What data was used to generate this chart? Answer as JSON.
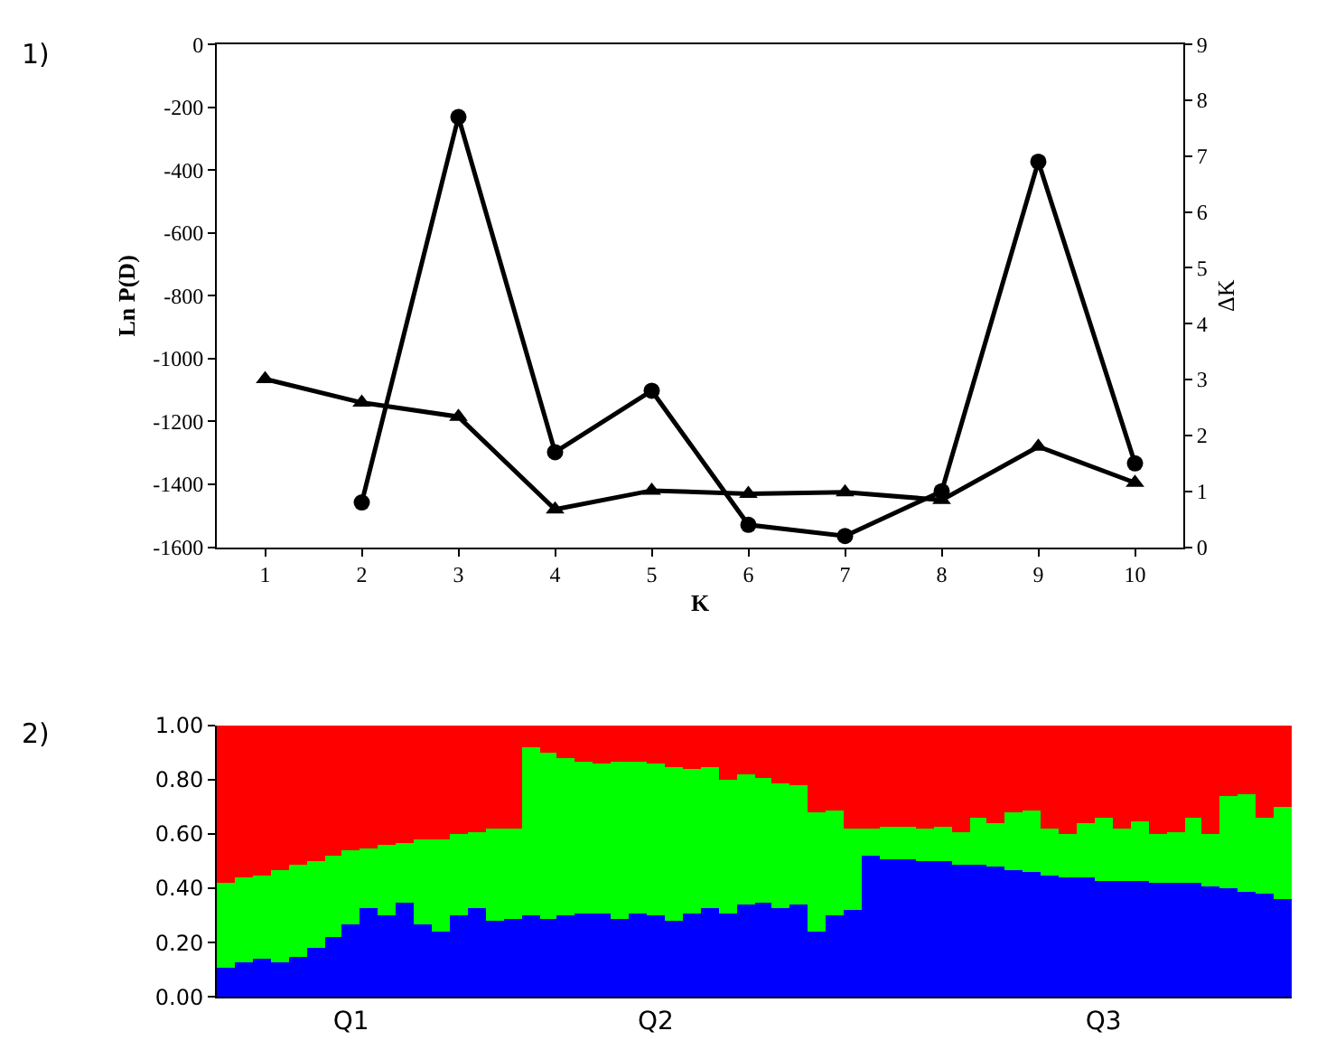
{
  "chart_data": [
    {
      "type": "line",
      "annotations": [
        "1)"
      ],
      "xlabel": "K",
      "ylabel": "Ln P(D)",
      "y2label": "ΔK",
      "x": [
        1,
        2,
        3,
        4,
        5,
        6,
        7,
        8,
        9,
        10
      ],
      "xlim": [
        0.5,
        10.5
      ],
      "xticks": [
        1,
        2,
        3,
        4,
        5,
        6,
        7,
        8,
        9,
        10
      ],
      "ylim": [
        -1600,
        0
      ],
      "yticks": [
        -1600,
        -1400,
        -1200,
        -1000,
        -800,
        -600,
        -400,
        -200,
        0
      ],
      "y2lim": [
        0,
        9
      ],
      "y2ticks": [
        0,
        1,
        2,
        3,
        4,
        5,
        6,
        7,
        8,
        9
      ],
      "line_style": "solid",
      "series": [
        {
          "color": "#000000",
          "marker": "triangle",
          "values": [
            -1065,
            -1140,
            -1185,
            -1480,
            -1420,
            -1430,
            -1425,
            -1450,
            -1280,
            -1395
          ]
        },
        {
          "color": "#000000",
          "marker": "circle",
          "axis": "y2",
          "values": [
            null,
            0.8,
            7.7,
            1.7,
            2.8,
            0.4,
            0.2,
            1.0,
            6.9,
            1.5
          ]
        }
      ]
    },
    {
      "type": "bar",
      "stacked": true,
      "annotations": [
        "2)"
      ],
      "categories": [
        null,
        null,
        null,
        null,
        null,
        null,
        null,
        "Q1",
        null,
        null,
        null,
        null,
        null,
        null,
        null,
        null,
        null,
        null,
        null,
        null,
        null,
        null,
        null,
        null,
        "Q2",
        null,
        null,
        null,
        null,
        null,
        null,
        null,
        null,
        null,
        null,
        null,
        null,
        null,
        null,
        null,
        null,
        null,
        null,
        null,
        null,
        null,
        null,
        null,
        null,
        "Q3",
        null,
        null,
        null,
        null,
        null,
        null,
        null,
        null,
        null,
        null
      ],
      "ylim": [
        0,
        1
      ],
      "yticks": [
        {
          "value": 0,
          "label": "0.00"
        },
        {
          "value": 0.2,
          "label": "0.20"
        },
        {
          "value": 0.4,
          "label": "0.40"
        },
        {
          "value": 0.6,
          "label": "0.60"
        },
        {
          "value": 0.8,
          "label": "0.80"
        },
        {
          "value": 1,
          "label": "1.00"
        }
      ],
      "series": [
        {
          "color": "#0000ff",
          "values": [
            0.11,
            0.13,
            0.14,
            0.13,
            0.15,
            0.18,
            0.22,
            0.27,
            0.33,
            0.3,
            0.35,
            0.27,
            0.24,
            0.3,
            0.33,
            0.28,
            0.29,
            0.3,
            0.29,
            0.3,
            0.31,
            0.31,
            0.29,
            0.31,
            0.3,
            0.28,
            0.31,
            0.33,
            0.31,
            0.34,
            0.35,
            0.33,
            0.34,
            0.24,
            0.3,
            0.32,
            0.52,
            0.51,
            0.51,
            0.5,
            0.5,
            0.49,
            0.49,
            0.48,
            0.47,
            0.46,
            0.45,
            0.44,
            0.44,
            0.43,
            0.43,
            0.43,
            0.42,
            0.42,
            0.42,
            0.41,
            0.4,
            0.39,
            0.38,
            0.36
          ]
        },
        {
          "color": "#00ff00",
          "values": [
            0.31,
            0.31,
            0.31,
            0.34,
            0.34,
            0.32,
            0.3,
            0.27,
            0.22,
            0.26,
            0.22,
            0.31,
            0.34,
            0.3,
            0.28,
            0.34,
            0.33,
            0.62,
            0.61,
            0.58,
            0.56,
            0.55,
            0.58,
            0.56,
            0.56,
            0.57,
            0.53,
            0.52,
            0.49,
            0.48,
            0.46,
            0.46,
            0.44,
            0.44,
            0.39,
            0.3,
            0.1,
            0.12,
            0.12,
            0.12,
            0.13,
            0.12,
            0.17,
            0.16,
            0.21,
            0.23,
            0.17,
            0.16,
            0.2,
            0.23,
            0.19,
            0.22,
            0.18,
            0.19,
            0.24,
            0.19,
            0.34,
            0.36,
            0.28,
            0.34
          ]
        },
        {
          "color": "#ff0000",
          "values": [
            0.58,
            0.56,
            0.55,
            0.53,
            0.51,
            0.5,
            0.48,
            0.46,
            0.45,
            0.44,
            0.43,
            0.42,
            0.42,
            0.4,
            0.39,
            0.38,
            0.38,
            0.08,
            0.1,
            0.12,
            0.13,
            0.14,
            0.13,
            0.13,
            0.14,
            0.15,
            0.16,
            0.15,
            0.2,
            0.18,
            0.19,
            0.21,
            0.22,
            0.32,
            0.31,
            0.38,
            0.38,
            0.37,
            0.37,
            0.38,
            0.37,
            0.39,
            0.34,
            0.36,
            0.32,
            0.31,
            0.38,
            0.4,
            0.36,
            0.34,
            0.38,
            0.35,
            0.4,
            0.39,
            0.34,
            0.4,
            0.26,
            0.25,
            0.34,
            0.3
          ]
        }
      ]
    }
  ]
}
